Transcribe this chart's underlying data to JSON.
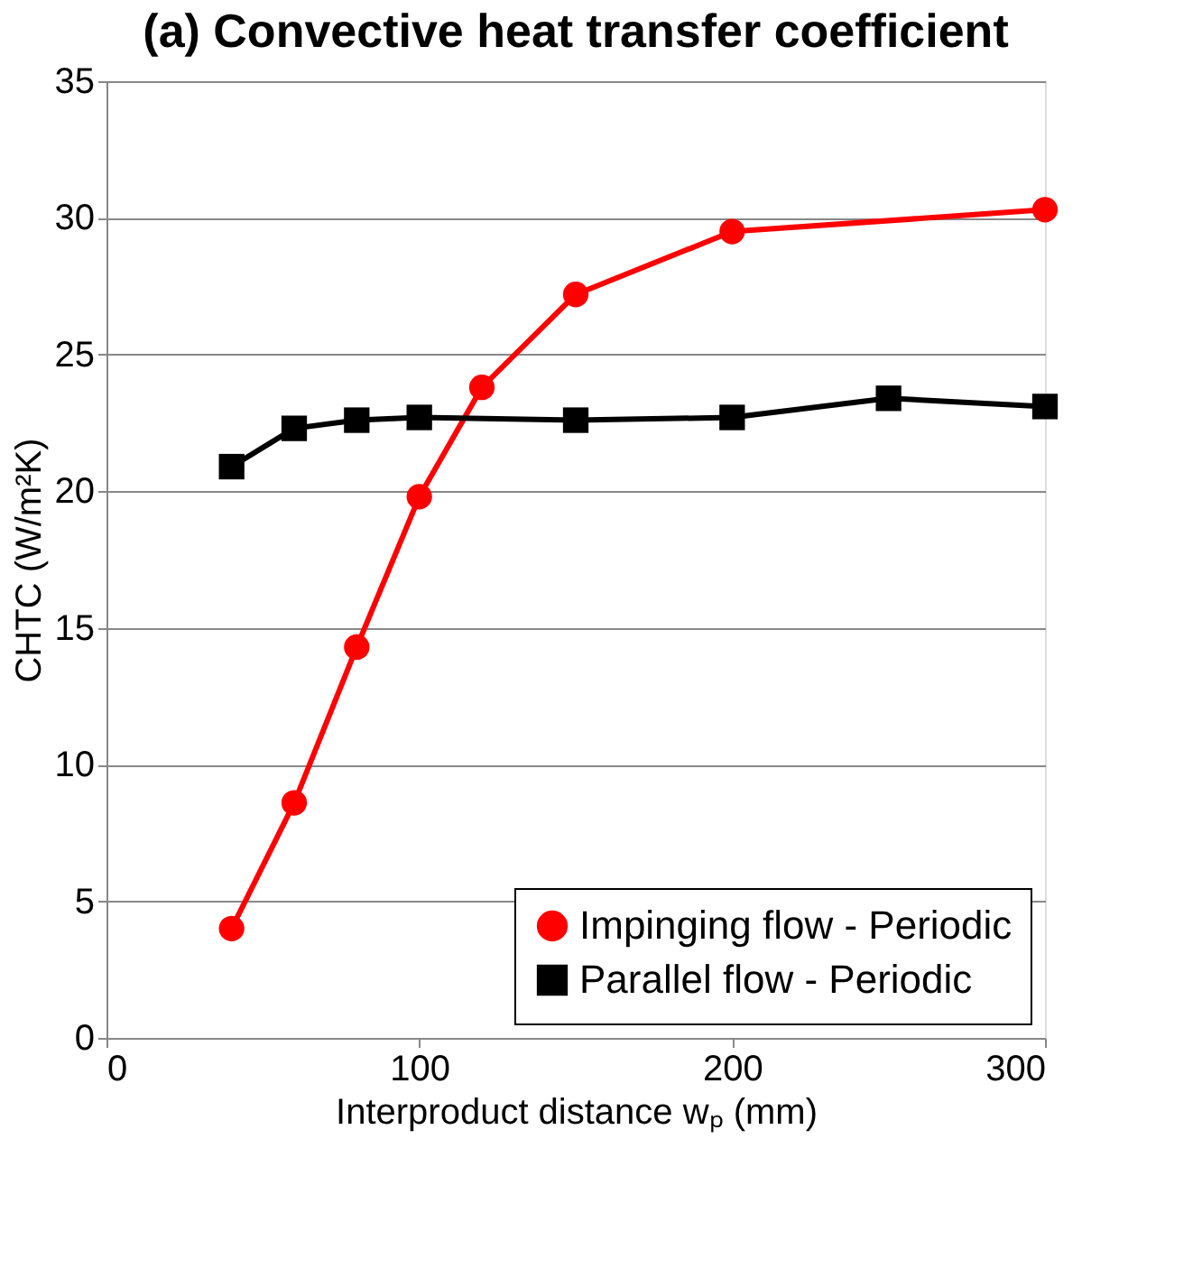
{
  "chart_data": {
    "type": "line",
    "title": "(a) Convective heat transfer coefficient",
    "xlabel": "Interproduct distance wₚ (mm)",
    "ylabel": "CHTC (W/m²K)",
    "xlim": [
      0,
      300
    ],
    "xticks": [
      0,
      100,
      200,
      300
    ],
    "ylim": [
      0,
      35
    ],
    "yticks": [
      0,
      5,
      10,
      15,
      20,
      25,
      30,
      35
    ],
    "grid": "y",
    "legend": "bottom right",
    "line_style": "solid",
    "series": [
      {
        "name": "Impinging flow - Periodic",
        "color": "#ff0000",
        "marker": "circle",
        "x": [
          40,
          60,
          80,
          100,
          120,
          150,
          200,
          300
        ],
        "values": [
          4.0,
          8.6,
          14.3,
          19.8,
          23.8,
          27.2,
          29.5,
          30.3
        ]
      },
      {
        "name": "Parallel flow - Periodic",
        "color": "#000000",
        "marker": "square",
        "x": [
          40,
          60,
          80,
          100,
          150,
          200,
          250,
          300
        ],
        "values": [
          20.9,
          22.3,
          22.6,
          22.7,
          22.6,
          22.7,
          23.4,
          23.1
        ]
      }
    ]
  }
}
